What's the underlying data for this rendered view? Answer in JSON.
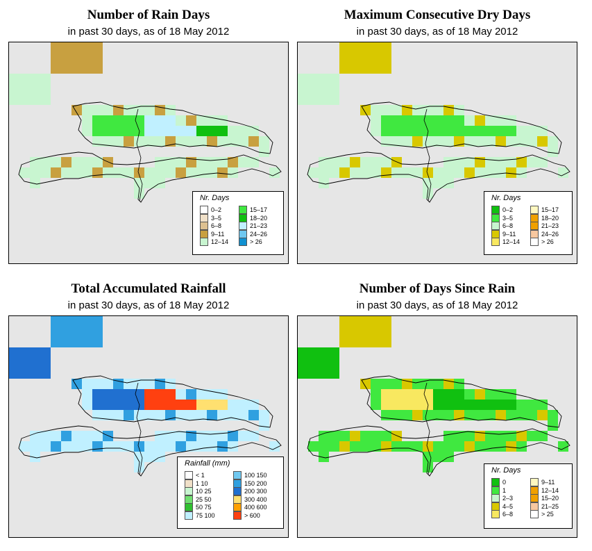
{
  "panels": [
    {
      "key": "rain_days",
      "title": "Number of Rain Days",
      "subtitle": "in past 30 days, as of  18 May 2012",
      "legend": {
        "title": "Nr. Days",
        "items": [
          {
            "label": "0–2",
            "color": "#ffffff"
          },
          {
            "label": "3–5",
            "color": "#f0e0c8"
          },
          {
            "label": "6–8",
            "color": "#ddc090"
          },
          {
            "label": "9–11",
            "color": "#c8a040"
          },
          {
            "label": "12–14",
            "color": "#c8f5d0"
          },
          {
            "label": "15–17",
            "color": "#40e840"
          },
          {
            "label": "18–20",
            "color": "#10c010"
          },
          {
            "label": "21–23",
            "color": "#c0f0ff"
          },
          {
            "label": "24–26",
            "color": "#70c8f0"
          },
          {
            "label": "> 26",
            "color": "#1090d0"
          }
        ]
      },
      "fill": {
        "west": "#40e840",
        "east": "#10c010",
        "fringe": "#c8a040",
        "hot": "#c0f0ff",
        "edge": "#c8f5d0",
        "islands": "#c8f5d0"
      }
    },
    {
      "key": "dry_days",
      "title": "Maximum Consecutive Dry Days",
      "subtitle": "in past 30 days, as of  18 May 2012",
      "legend": {
        "title": "Nr. Days",
        "items": [
          {
            "label": "0–2",
            "color": "#10c010"
          },
          {
            "label": "3–5",
            "color": "#40e840"
          },
          {
            "label": "6–8",
            "color": "#c8f5d0"
          },
          {
            "label": "9–11",
            "color": "#d8c800"
          },
          {
            "label": "12–14",
            "color": "#f8e860"
          },
          {
            "label": "15–17",
            "color": "#fff8c0"
          },
          {
            "label": "18–20",
            "color": "#f0a000"
          },
          {
            "label": "21–23",
            "color": "#f0a000"
          },
          {
            "label": "24–26",
            "color": "#f8c8a0"
          },
          {
            "label": "> 26",
            "color": "#ffffff"
          }
        ]
      },
      "fill": {
        "west": "#40e840",
        "east": "#40e840",
        "fringe": "#d8c800",
        "hot": "#40e840",
        "edge": "#c8f5d0",
        "islands": "#c8f5d0"
      }
    },
    {
      "key": "rainfall",
      "title": "Total Accumulated Rainfall",
      "subtitle": "in past 30 days, as of  18 May 2012",
      "legend": {
        "title": "Rainfall (mm)",
        "items": [
          {
            "label": "< 1",
            "color": "#ffffff"
          },
          {
            "label": "1   10",
            "color": "#f0e0c8"
          },
          {
            "label": "10   25",
            "color": "#c8f5d0"
          },
          {
            "label": "25   50",
            "color": "#70e070"
          },
          {
            "label": "50   75",
            "color": "#30c030"
          },
          {
            "label": "75   100",
            "color": "#c0f0ff"
          },
          {
            "label": "100   150",
            "color": "#70c8f0"
          },
          {
            "label": "150   200",
            "color": "#30a0e0"
          },
          {
            "label": "200   300",
            "color": "#2070d0"
          },
          {
            "label": "300   400",
            "color": "#ffe070"
          },
          {
            "label": "400   600",
            "color": "#ffa000"
          },
          {
            "label": "> 600",
            "color": "#ff4010"
          }
        ]
      },
      "fill": {
        "west": "#2070d0",
        "east": "#ffe070",
        "fringe": "#30a0e0",
        "hot": "#ff4010",
        "edge": "#c0f0ff",
        "islands": "#2070d0"
      }
    },
    {
      "key": "since_rain",
      "title": "Number of Days Since Rain",
      "subtitle": "in past 30 days, as of  18 May 2012",
      "legend": {
        "title": "Nr. Days",
        "items": [
          {
            "label": "0",
            "color": "#10c010"
          },
          {
            "label": "1",
            "color": "#40e840"
          },
          {
            "label": "2–3",
            "color": "#c8f5d0"
          },
          {
            "label": "4–5",
            "color": "#d8c800"
          },
          {
            "label": "6–8",
            "color": "#f8e860"
          },
          {
            "label": "9–11",
            "color": "#fff8c0"
          },
          {
            "label": "12–14",
            "color": "#f0a000"
          },
          {
            "label": "15–20",
            "color": "#f0a000"
          },
          {
            "label": "21–25",
            "color": "#f8c8a0"
          },
          {
            "label": "> 25",
            "color": "#ffffff"
          }
        ]
      },
      "fill": {
        "west": "#f8e860",
        "east": "#10c010",
        "fringe": "#d8c800",
        "hot": "#10c010",
        "edge": "#40e840",
        "islands": "#10c010"
      }
    }
  ]
}
